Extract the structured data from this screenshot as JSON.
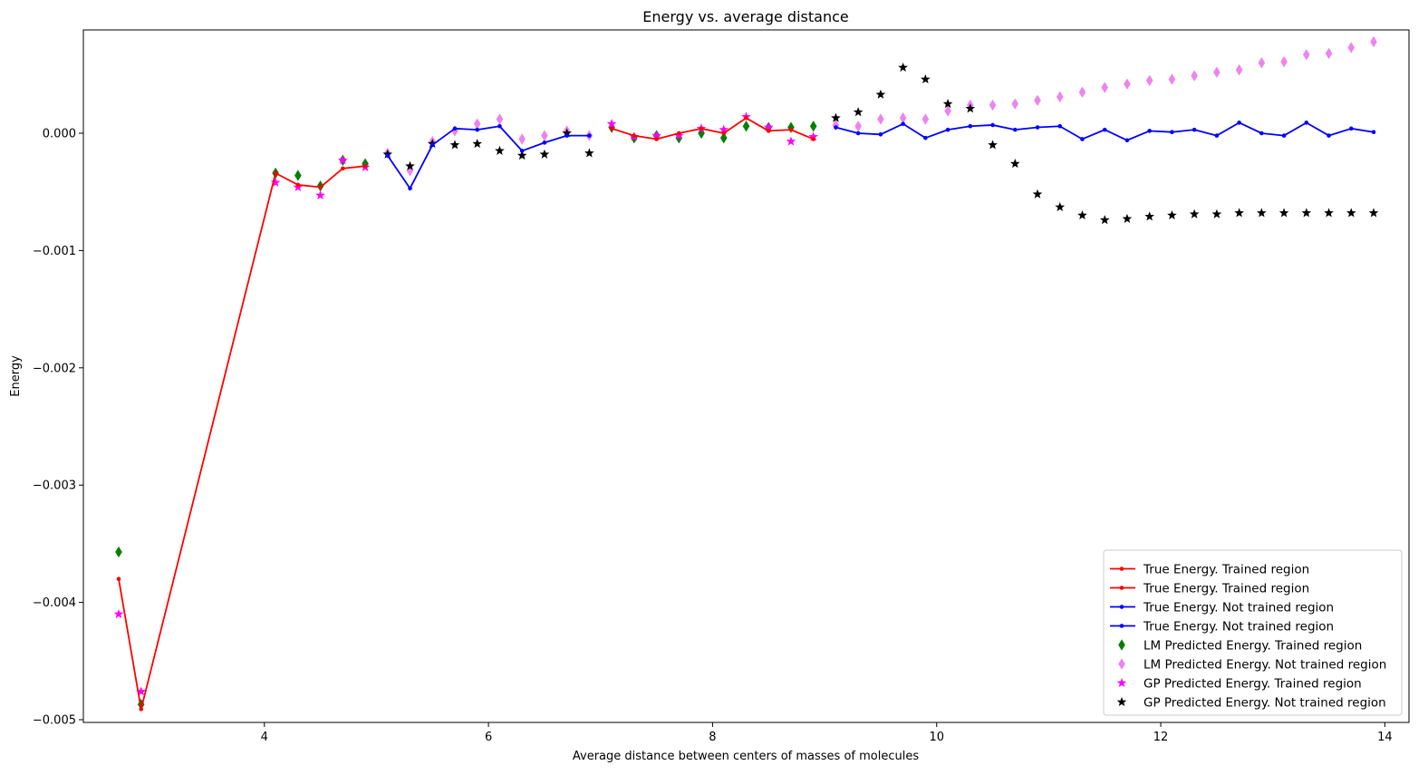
{
  "chart_data": {
    "type": "line",
    "title": "Energy vs. average distance",
    "xlabel": "Average distance between centers of masses of molecules",
    "ylabel": "Energy",
    "xlim": [
      2.35,
      14.2
    ],
    "ylim": [
      -0.00502,
      0.00088
    ],
    "xticks": [
      4,
      6,
      8,
      10,
      12,
      14
    ],
    "xtick_labels": [
      "4",
      "6",
      "8",
      "10",
      "12",
      "14"
    ],
    "yticks": [
      -0.005,
      -0.004,
      -0.003,
      -0.002,
      -0.001,
      0.0
    ],
    "ytick_labels": [
      "−0.005",
      "−0.004",
      "−0.003",
      "−0.002",
      "−0.001",
      "0.000"
    ],
    "grid": false,
    "legend_position": "lower right",
    "series": [
      {
        "name": "True Energy. Trained region",
        "kind": "line",
        "color": "#ff0000",
        "marker": "dot",
        "x": [
          2.7,
          2.9,
          4.1,
          4.3,
          4.5,
          4.7,
          4.9
        ],
        "y": [
          -0.0038,
          -0.00491,
          -0.00034,
          -0.00044,
          -0.00046,
          -0.0003,
          -0.00028
        ]
      },
      {
        "name": "True Energy. Trained region",
        "kind": "line",
        "color": "#ff0000",
        "marker": "dot",
        "x": [
          7.1,
          7.3,
          7.5,
          7.7,
          7.9,
          8.1,
          8.3,
          8.5,
          8.7,
          8.9
        ],
        "y": [
          4e-05,
          -2e-05,
          -5e-05,
          0.0,
          4e-05,
          0.0,
          0.00013,
          2e-05,
          3e-05,
          -5e-05
        ]
      },
      {
        "name": "True Energy. Not trained region",
        "kind": "line",
        "color": "#0000ff",
        "marker": "dot",
        "x": [
          5.1,
          5.3,
          5.5,
          5.7,
          5.9,
          6.1,
          6.3,
          6.5,
          6.7,
          6.9
        ],
        "y": [
          -0.00019,
          -0.00047,
          -0.0001,
          4e-05,
          3e-05,
          6e-05,
          -0.00015,
          -8e-05,
          -2e-05,
          -2e-05
        ]
      },
      {
        "name": "True Energy. Not trained region",
        "kind": "line",
        "color": "#0000ff",
        "marker": "dot",
        "x": [
          9.1,
          9.3,
          9.5,
          9.7,
          9.9,
          10.1,
          10.3,
          10.5,
          10.7,
          10.9,
          11.1,
          11.3,
          11.5,
          11.7,
          11.9,
          12.1,
          12.3,
          12.5,
          12.7,
          12.9,
          13.1,
          13.3,
          13.5,
          13.7,
          13.9
        ],
        "y": [
          5e-05,
          0.0,
          -1e-05,
          8e-05,
          -4e-05,
          3e-05,
          6e-05,
          7e-05,
          3e-05,
          5e-05,
          6e-05,
          -5e-05,
          3e-05,
          -6e-05,
          2e-05,
          1e-05,
          3e-05,
          -2e-05,
          9e-05,
          0.0,
          -2e-05,
          9e-05,
          -2e-05,
          4e-05,
          1e-05
        ]
      },
      {
        "name": "LM Predicted Energy. Trained region",
        "kind": "scatter",
        "color": "#008000",
        "marker": "thin_diamond",
        "x": [
          2.7,
          2.9,
          4.1,
          4.3,
          4.5,
          4.7,
          4.9,
          7.1,
          7.3,
          7.5,
          7.7,
          7.9,
          8.1,
          8.3,
          8.5,
          8.7,
          8.9
        ],
        "y": [
          -0.00357,
          -0.00487,
          -0.00034,
          -0.00036,
          -0.00045,
          -0.00023,
          -0.00026,
          5e-05,
          -4e-05,
          -2e-05,
          -4e-05,
          0.0,
          -4e-05,
          6e-05,
          5e-05,
          5e-05,
          6e-05
        ]
      },
      {
        "name": "LM Predicted Energy. Not trained region",
        "kind": "scatter",
        "color": "#ee82ee",
        "marker": "thin_diamond",
        "x": [
          5.1,
          5.3,
          5.5,
          5.7,
          5.9,
          6.1,
          6.3,
          6.5,
          6.7,
          6.9,
          9.1,
          9.3,
          9.5,
          9.7,
          9.9,
          10.1,
          10.3,
          10.5,
          10.7,
          10.9,
          11.1,
          11.3,
          11.5,
          11.7,
          11.9,
          12.1,
          12.3,
          12.5,
          12.7,
          12.9,
          13.1,
          13.3,
          13.5,
          13.7,
          13.9
        ],
        "y": [
          -0.00017,
          -0.00032,
          -7e-05,
          2e-05,
          8e-05,
          0.00012,
          -5e-05,
          -2e-05,
          2e-05,
          -2e-05,
          7e-05,
          6e-05,
          0.00012,
          0.00013,
          0.00012,
          0.00019,
          0.00024,
          0.00024,
          0.00025,
          0.00028,
          0.00031,
          0.00035,
          0.00039,
          0.00042,
          0.00045,
          0.00046,
          0.00049,
          0.00052,
          0.00054,
          0.0006,
          0.00061,
          0.00067,
          0.00068,
          0.00073,
          0.00078
        ]
      },
      {
        "name": "GP Predicted Energy. Trained region",
        "kind": "scatter",
        "color": "#ff00ff",
        "marker": "star",
        "x": [
          2.7,
          2.9,
          4.1,
          4.3,
          4.5,
          4.7,
          4.9,
          7.1,
          7.3,
          7.5,
          7.7,
          7.9,
          8.1,
          8.3,
          8.5,
          8.7,
          8.9
        ],
        "y": [
          -0.0041,
          -0.00476,
          -0.00042,
          -0.00046,
          -0.00053,
          -0.00023,
          -0.00029,
          8e-05,
          -3e-05,
          -2e-05,
          -2e-05,
          4e-05,
          3e-05,
          0.00014,
          5e-05,
          -7e-05,
          -3e-05
        ]
      },
      {
        "name": "GP Predicted Energy. Not trained region",
        "kind": "scatter",
        "color": "#000000",
        "marker": "star",
        "x": [
          5.1,
          5.3,
          5.5,
          5.7,
          5.9,
          6.1,
          6.3,
          6.5,
          6.7,
          6.9,
          9.1,
          9.3,
          9.5,
          9.7,
          9.9,
          10.1,
          10.3,
          10.5,
          10.7,
          10.9,
          11.1,
          11.3,
          11.5,
          11.7,
          11.9,
          12.1,
          12.3,
          12.5,
          12.7,
          12.9,
          13.1,
          13.3,
          13.5,
          13.7,
          13.9
        ],
        "y": [
          -0.00018,
          -0.00028,
          -9e-05,
          -0.0001,
          -9e-05,
          -0.00015,
          -0.00019,
          -0.00018,
          0.0,
          -0.00017,
          0.00013,
          0.00018,
          0.00033,
          0.00056,
          0.00046,
          0.00025,
          0.00021,
          -0.0001,
          -0.00026,
          -0.00052,
          -0.00063,
          -0.0007,
          -0.00074,
          -0.00073,
          -0.00071,
          -0.0007,
          -0.00069,
          -0.00069,
          -0.00068,
          -0.00068,
          -0.00068,
          -0.00068,
          -0.00068,
          -0.00068,
          -0.00068
        ]
      }
    ]
  }
}
